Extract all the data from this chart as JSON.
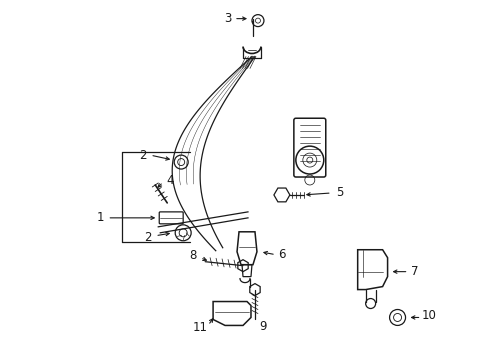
{
  "title": "",
  "bg_color": "#ffffff",
  "line_color": "#1a1a1a",
  "fig_width": 4.89,
  "fig_height": 3.6,
  "dpi": 100
}
